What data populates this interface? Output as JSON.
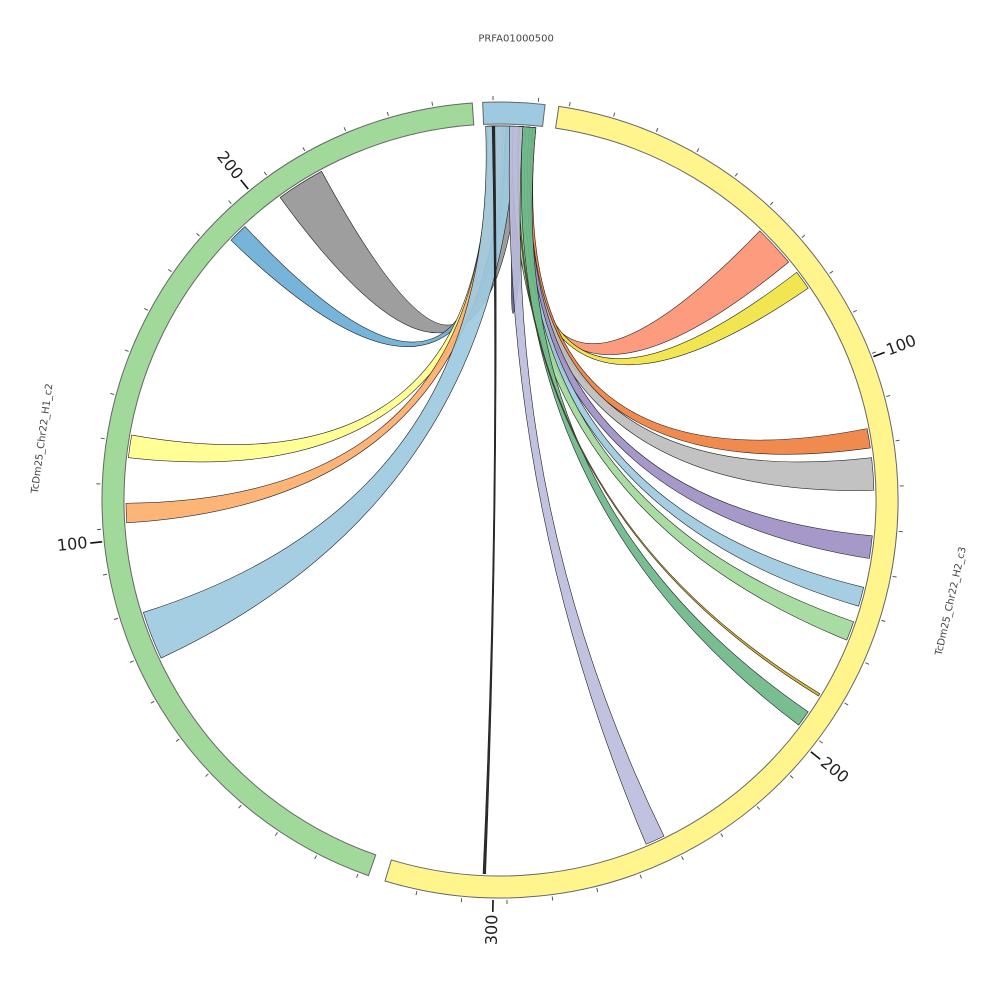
{
  "chart_data": {
    "type": "chord",
    "segments": [
      {
        "name": "PRFA01000500",
        "color": "#9ecae1",
        "start_deg": 357.5,
        "end_deg": 6.5
      },
      {
        "name": "TcDm25_Chr22_H2_c3",
        "color": "#fff58c",
        "start_deg": 8.5,
        "end_deg": 196.8
      },
      {
        "name": "TcDm25_Chr22_H1_c2",
        "color": "#a1d99b",
        "start_deg": 199.3,
        "end_deg": 356.0
      }
    ],
    "tick_labels": [
      {
        "segment": "TcDm25_Chr22_H2_c3",
        "text": "100",
        "angle": 69
      },
      {
        "segment": "TcDm25_Chr22_H2_c3",
        "text": "200",
        "angle": 129
      },
      {
        "segment": "TcDm25_Chr22_H2_c3",
        "text": "300",
        "angle": 181
      },
      {
        "segment": "TcDm25_Chr22_H1_c2",
        "text": "100",
        "angle": 264
      },
      {
        "segment": "TcDm25_Chr22_H1_c2",
        "text": "200",
        "angle": 321
      }
    ],
    "links": [
      {
        "color": "#969696",
        "src": [
          358.6,
          3.5
        ],
        "dst": [
          324.0,
          331.5
        ]
      },
      {
        "color": "#6baed6",
        "src": [
          358.3,
          1.0
        ],
        "dst": [
          314.0,
          317.0
        ]
      },
      {
        "color": "#ffff8c",
        "src": [
          358.0,
          0.8
        ],
        "dst": [
          276.5,
          280.0
        ]
      },
      {
        "color": "#fdae6b",
        "src": [
          358.0,
          0.5
        ],
        "dst": [
          266.5,
          269.5
        ]
      },
      {
        "color": "#9ecae1",
        "src": [
          357.8,
          2.5
        ],
        "dst": [
          245.0,
          252.5
        ]
      },
      {
        "color": "#1b1b1b",
        "src": [
          358.8,
          359.2
        ],
        "dst": [
          182.2,
          182.6
        ]
      },
      {
        "color": "#5b6080",
        "src": [
          2.5,
          5.5
        ],
        "dst": [
          2.5,
          5.5
        ]
      },
      {
        "color": "#fc9272",
        "src": [
          2.0,
          4.5
        ],
        "dst": [
          44.0,
          50.5
        ]
      },
      {
        "color": "#f0e442",
        "src": [
          3.0,
          5.0
        ],
        "dst": [
          52.5,
          55.5
        ]
      },
      {
        "color": "#f08040",
        "src": [
          3.0,
          5.5
        ],
        "dst": [
          79.0,
          82.0
        ]
      },
      {
        "color": "#bdbdbd",
        "src": [
          2.5,
          5.0
        ],
        "dst": [
          83.5,
          88.5
        ]
      },
      {
        "color": "#9e8fc4",
        "src": [
          2.5,
          5.0
        ],
        "dst": [
          95.5,
          99.0
        ]
      },
      {
        "color": "#9ecae1",
        "src": [
          2.5,
          4.5
        ],
        "dst": [
          103.5,
          106.5
        ]
      },
      {
        "color": "#a1d99b",
        "src": [
          2.0,
          4.0
        ],
        "dst": [
          109.0,
          112.0
        ]
      },
      {
        "color": "#6cb888",
        "src": [
          3.5,
          5.5
        ],
        "dst": [
          124.5,
          127.0
        ]
      },
      {
        "color": "#d4b020",
        "src": [
          2.8,
          3.0
        ],
        "dst": [
          121.2,
          121.6
        ]
      },
      {
        "color": "#bcbddc",
        "src": [
          1.5,
          3.5
        ],
        "dst": [
          154.0,
          157.0
        ]
      }
    ]
  }
}
